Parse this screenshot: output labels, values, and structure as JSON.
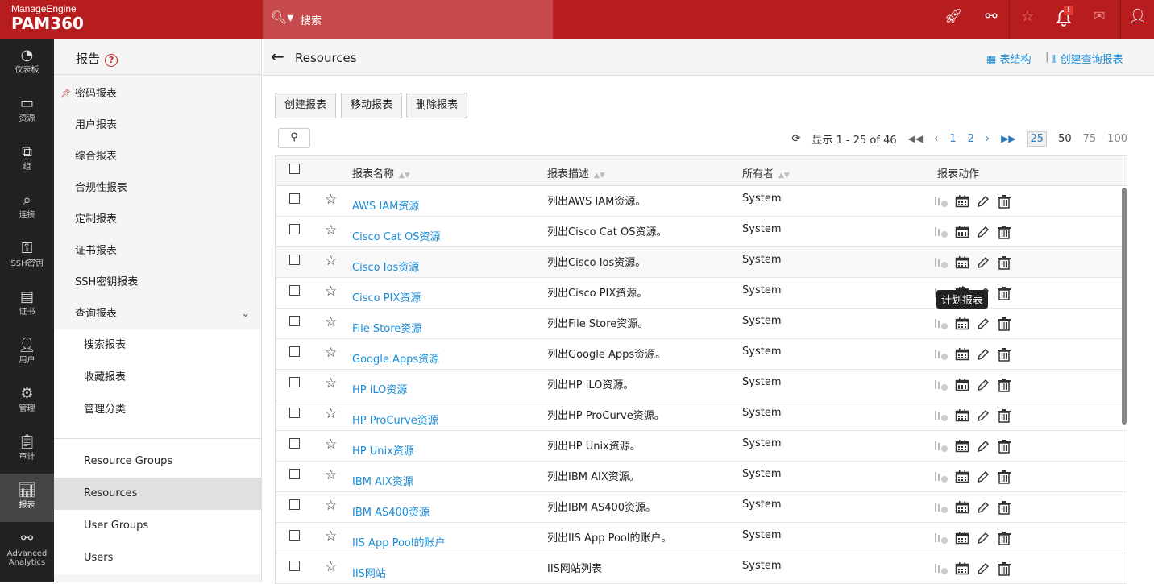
{
  "header": {
    "brand_small": "ManageEngine",
    "brand": "PAM360",
    "search_placeholder": "搜索",
    "icons": [
      "rocket-icon",
      "link-icon",
      "user-star-icon",
      "bell-icon",
      "mail-icon",
      "user-icon"
    ],
    "alert_badge": "!"
  },
  "leftnav": [
    {
      "label": "仪表板",
      "icon": "dashboard-icon"
    },
    {
      "label": "资源",
      "icon": "monitor-icon"
    },
    {
      "label": "组",
      "icon": "group-icon"
    },
    {
      "label": "连接",
      "icon": "connection-icon"
    },
    {
      "label": "SSH密钥",
      "icon": "key-icon"
    },
    {
      "label": "证书",
      "icon": "certificate-icon"
    },
    {
      "label": "用户",
      "icon": "user-icon"
    },
    {
      "label": "管理",
      "icon": "gear-icon"
    },
    {
      "label": "审计",
      "icon": "clipboard-icon"
    },
    {
      "label": "报表",
      "icon": "bar-chart-icon",
      "active": true
    },
    {
      "label": "Advanced Analytics",
      "icon": "analytics-icon"
    }
  ],
  "sidebar": {
    "title": "报告",
    "items": [
      "密码报表",
      "用户报表",
      "综合报表",
      "合规性报表",
      "定制报表",
      "证书报表",
      "SSH密钥报表",
      "查询报表"
    ],
    "sub_items": [
      "搜索报表",
      "收藏报表",
      "管理分类"
    ],
    "groups": [
      "Resource Groups",
      "Resources",
      "User Groups",
      "Users"
    ],
    "active": "Resources"
  },
  "main": {
    "title": "Resources",
    "links": {
      "schema": "表结构",
      "create_query": "创建查询报表"
    },
    "buttons": {
      "create": "创建报表",
      "move": "移动报表",
      "delete": "删除报表"
    },
    "pagination": {
      "summary": "显示 1 - 25 of 46",
      "pages": [
        "1",
        "2"
      ],
      "sizes": [
        "25",
        "50",
        "75",
        "100"
      ],
      "selected_size": "25"
    },
    "columns": [
      "报表名称",
      "报表描述",
      "所有者",
      "报表动作"
    ],
    "tooltip": "计划报表",
    "rows": [
      {
        "name": "AWS IAM资源",
        "desc": "列出AWS IAM资源。",
        "owner": "System"
      },
      {
        "name": "Cisco Cat OS资源",
        "desc": "列出Cisco Cat OS资源。",
        "owner": "System"
      },
      {
        "name": "Cisco Ios资源",
        "desc": "列出Cisco Ios资源。",
        "owner": "System"
      },
      {
        "name": "Cisco PIX资源",
        "desc": "列出Cisco PIX资源。",
        "owner": "System"
      },
      {
        "name": "File Store资源",
        "desc": "列出File Store资源。",
        "owner": "System"
      },
      {
        "name": "Google Apps资源",
        "desc": "列出Google Apps资源。",
        "owner": "System"
      },
      {
        "name": "HP iLO资源",
        "desc": "列出HP iLO资源。",
        "owner": "System"
      },
      {
        "name": "HP ProCurve资源",
        "desc": "列出HP ProCurve资源。",
        "owner": "System"
      },
      {
        "name": "HP Unix资源",
        "desc": "列出HP Unix资源。",
        "owner": "System"
      },
      {
        "name": "IBM AIX资源",
        "desc": "列出IBM AIX资源。",
        "owner": "System"
      },
      {
        "name": "IBM AS400资源",
        "desc": "列出IBM AS400资源。",
        "owner": "System"
      },
      {
        "name": "IIS App Pool的账户",
        "desc": "列出IIS App Pool的账户。",
        "owner": "System"
      },
      {
        "name": "IIS网站",
        "desc": "IIS网站列表",
        "owner": "System"
      }
    ]
  }
}
